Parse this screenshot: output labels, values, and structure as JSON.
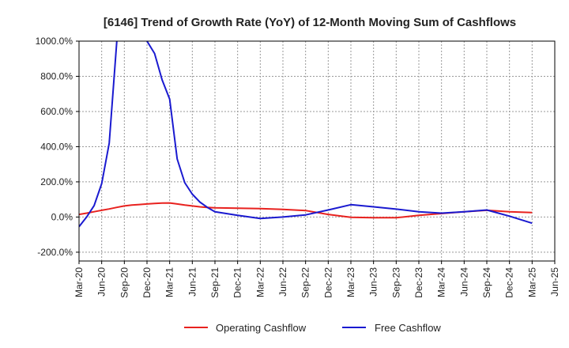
{
  "chart_data": {
    "type": "line",
    "title": "[6146]  Trend of Growth Rate (YoY) of 12-Month Moving Sum of Cashflows",
    "xlabel": "",
    "ylabel": "",
    "ylim": [
      -250,
      1000
    ],
    "y_ticks": [
      "1000.0%",
      "800.0%",
      "600.0%",
      "400.0%",
      "200.0%",
      "0.0%",
      "-200.0%"
    ],
    "y_tick_values": [
      1000,
      800,
      600,
      400,
      200,
      0,
      -200
    ],
    "x_ticks": [
      "Mar-20",
      "Jun-20",
      "Sep-20",
      "Dec-20",
      "Mar-21",
      "Jun-21",
      "Sep-21",
      "Dec-21",
      "Mar-22",
      "Jun-22",
      "Sep-22",
      "Dec-22",
      "Mar-23",
      "Jun-23",
      "Sep-23",
      "Dec-23",
      "Mar-24",
      "Jun-24",
      "Sep-24",
      "Dec-24",
      "Mar-25",
      "Jun-25"
    ],
    "x": [
      "Mar-20",
      "Apr-20",
      "May-20",
      "Jun-20",
      "Jul-20",
      "Aug-20",
      "Sep-20",
      "Oct-20",
      "Nov-20",
      "Dec-20",
      "Jan-21",
      "Feb-21",
      "Mar-21",
      "Apr-21",
      "May-21",
      "Jun-21",
      "Jul-21",
      "Aug-21",
      "Sep-21",
      "Dec-21",
      "Mar-22",
      "Jun-22",
      "Sep-22",
      "Dec-22",
      "Mar-23",
      "Jun-23",
      "Sep-23",
      "Dec-23",
      "Mar-24",
      "Jun-24",
      "Sep-24",
      "Dec-24",
      "Mar-25"
    ],
    "grid": true,
    "legend_position": "bottom",
    "series": [
      {
        "name": "Operating Cashflow",
        "color": "#e8221f",
        "values": [
          15,
          22,
          30,
          38,
          46,
          55,
          63,
          68,
          71,
          74,
          77,
          79,
          80,
          74,
          68,
          63,
          58,
          55,
          52,
          50,
          48,
          43,
          37,
          15,
          -2,
          -4,
          -4,
          10,
          20,
          30,
          38,
          30,
          25
        ]
      },
      {
        "name": "Free Cashflow",
        "color": "#1a1ad0",
        "values": [
          -55,
          0,
          65,
          190,
          420,
          1000,
          null,
          null,
          null,
          1000,
          930,
          780,
          670,
          330,
          195,
          130,
          85,
          55,
          30,
          10,
          -8,
          0,
          12,
          40,
          70,
          58,
          45,
          30,
          22,
          30,
          40,
          5,
          -35
        ]
      }
    ]
  }
}
